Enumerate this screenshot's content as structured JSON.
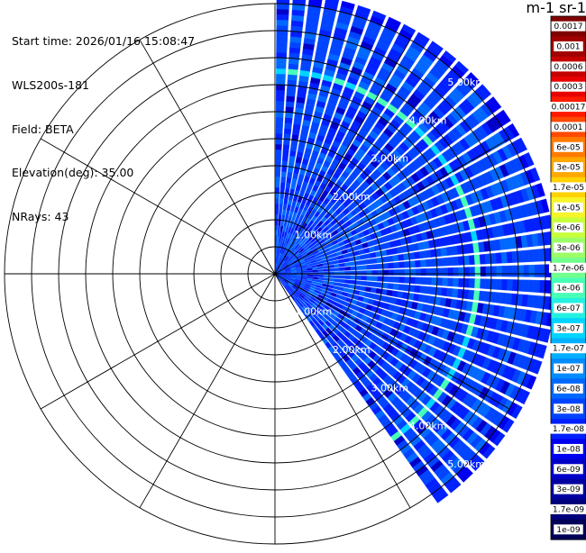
{
  "info": {
    "start_time": "Start time: 2026/01/16 15:08:47",
    "instrument": "WLS200s-181",
    "field": "Field: BETA",
    "elevation": "Elevation(deg): 35.00",
    "nrays": "NRays: 43"
  },
  "colorbar": {
    "title": "m-1 sr-1",
    "labels": [
      "0.0017",
      "0.001",
      "0.0006",
      "0.0003",
      "0.00017",
      "0.0001",
      "6e-05",
      "3e-05",
      "1.7e-05",
      "1e-05",
      "6e-06",
      "3e-06",
      "1.7e-06",
      "1e-06",
      "6e-07",
      "3e-07",
      "1.7e-07",
      "1e-07",
      "6e-08",
      "3e-08",
      "1.7e-08",
      "1e-08",
      "6e-09",
      "3e-09",
      "1.7e-09",
      "1e-09"
    ],
    "colors": [
      "#7f0000",
      "#a00000",
      "#c40000",
      "#e80000",
      "#ff1a00",
      "#ff4a00",
      "#ff7a00",
      "#ffa800",
      "#ffd200",
      "#f5f52a",
      "#c8ff3c",
      "#9cff68",
      "#72ff8e",
      "#48ffb6",
      "#24f0e0",
      "#00d4ff",
      "#00b0ff",
      "#008cff",
      "#0068ff",
      "#0044ff",
      "#0020ff",
      "#0000f0",
      "#0000c8",
      "#0000a0",
      "#00007c",
      "#000058"
    ]
  },
  "chart_data": {
    "type": "heatmap",
    "projection": "polar-ppi",
    "field": "BETA",
    "elevation_deg": 35.0,
    "n_rays": 43,
    "azimuth_range_deg": [
      0,
      145
    ],
    "range_labels": [
      "1.00km",
      "2.00km",
      "3.00km",
      "4.00km",
      "5.00km"
    ],
    "range_rings_km": [
      0.5,
      1,
      1.5,
      2,
      2.5,
      3,
      3.5,
      4,
      4.5,
      5
    ],
    "data_max_range_km": 5.2,
    "spoke_angles_deg": [
      0,
      30,
      60,
      90,
      120,
      150,
      180,
      210,
      240,
      270,
      300,
      330
    ],
    "background_level": "3e-08",
    "high_backscatter_band_km": [
      3.7,
      3.85
    ],
    "high_backscatter_level": "1e-06",
    "colorbar_scale": "log",
    "colorbar_range": [
      1e-09,
      0.0017
    ]
  }
}
